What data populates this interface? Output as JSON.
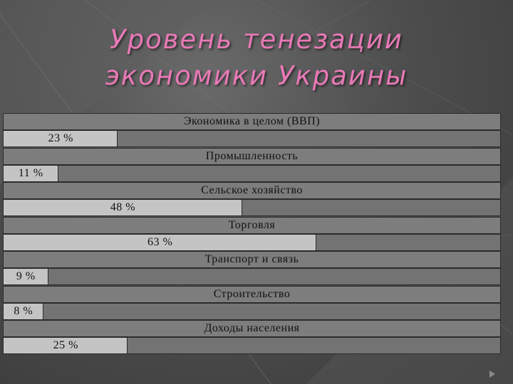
{
  "title": {
    "line1": "Уровень тенезации",
    "line2": "экономики Украины"
  },
  "chart_data": {
    "type": "bar",
    "orientation": "horizontal",
    "categories": [
      "Экономика в целом (ВВП)",
      "Промышленность",
      "Сельское хозяйство",
      "Торговля",
      "Транспорт и связь",
      "Строительство",
      "Доходы населения"
    ],
    "values": [
      23,
      11,
      48,
      63,
      9,
      8,
      25
    ],
    "labels": [
      "23 %",
      "11 %",
      "48 %",
      "63 %",
      "9 %",
      "8 %",
      "25 %"
    ],
    "unit": "%",
    "xlim": [
      0,
      100
    ],
    "grid": false,
    "legend": "none",
    "colors": {
      "bar": "#c4c4c4",
      "track": "#737373",
      "header": "#7d7d7d",
      "title": "#e879b6"
    }
  }
}
